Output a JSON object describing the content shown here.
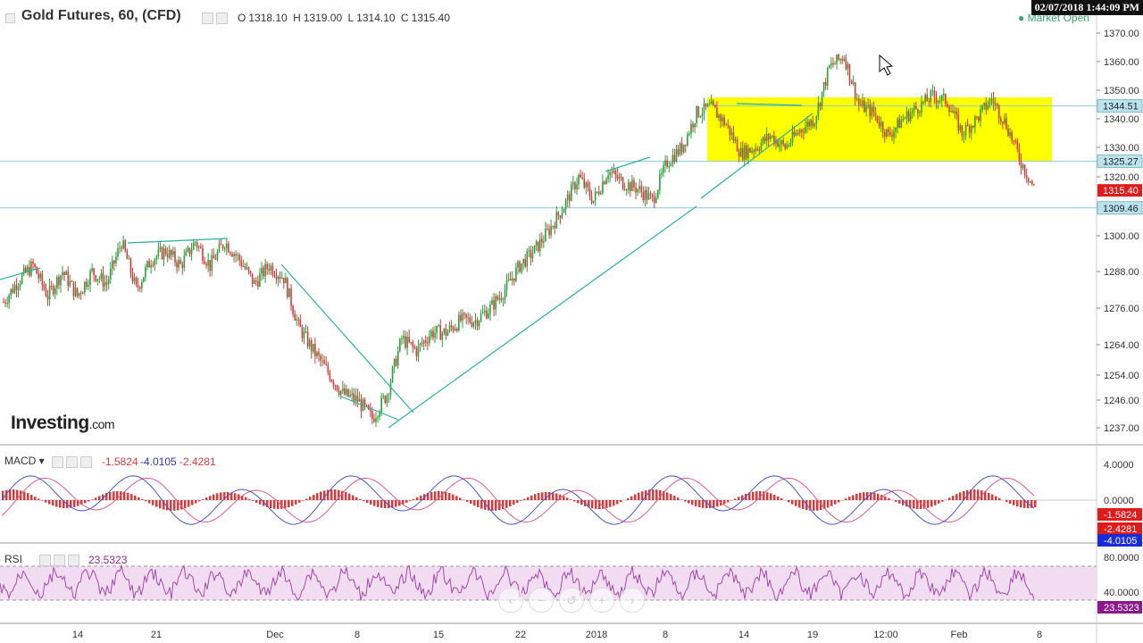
{
  "header": {
    "title": "Gold Futures, 60, (CFD)",
    "ohlc": {
      "o_label": "O",
      "o": "1318.10",
      "h_label": "H",
      "h": "1319.00",
      "l_label": "L",
      "l": "1314.10",
      "c_label": "C",
      "c": "1315.40"
    },
    "market_status": "Market Open",
    "timestamp": "02/07/2018 1:44:09 PM"
  },
  "branding": {
    "logo_main": "Investing",
    "logo_suffix": ".com"
  },
  "colors": {
    "up": "#2e9e3c",
    "down": "#d63b3b",
    "trend": "#2bb0a0",
    "hline": "#8cc9d6",
    "zone": "#ffff00",
    "macd": "#4a54c8",
    "signal": "#e05a8a",
    "rsi": "#a04aa8",
    "rsi_band": "#f1dcf1"
  },
  "chart_data": {
    "type": "candlestick",
    "x_ticks": [
      "14",
      "21",
      "Dec",
      "8",
      "15",
      "22",
      "2018",
      "8",
      "14",
      "19",
      "12:00",
      "Feb",
      "8"
    ],
    "y_ticks": [
      "1370.00",
      "1360.00",
      "1350.00",
      "1340.00",
      "1330.00",
      "1320.00",
      "1300.00",
      "1288.00",
      "1276.00",
      "1264.00",
      "1254.00",
      "1246.00",
      "1237.00"
    ],
    "price_path": [
      [
        0,
        1278
      ],
      [
        2,
        1285
      ],
      [
        4,
        1290
      ],
      [
        6,
        1280
      ],
      [
        8,
        1288
      ],
      [
        10,
        1280
      ],
      [
        12,
        1288
      ],
      [
        14,
        1284
      ],
      [
        16,
        1298
      ],
      [
        18,
        1282
      ],
      [
        20,
        1292
      ],
      [
        22,
        1295
      ],
      [
        24,
        1290
      ],
      [
        26,
        1298
      ],
      [
        28,
        1290
      ],
      [
        30,
        1298
      ],
      [
        32,
        1292
      ],
      [
        34,
        1284
      ],
      [
        36,
        1290
      ],
      [
        38,
        1286
      ],
      [
        40,
        1270
      ],
      [
        42,
        1262
      ],
      [
        44,
        1255
      ],
      [
        46,
        1248
      ],
      [
        48,
        1246
      ],
      [
        50,
        1240
      ],
      [
        52,
        1248
      ],
      [
        54,
        1266
      ],
      [
        56,
        1262
      ],
      [
        58,
        1268
      ],
      [
        60,
        1268
      ],
      [
        62,
        1272
      ],
      [
        64,
        1272
      ],
      [
        66,
        1276
      ],
      [
        68,
        1282
      ],
      [
        70,
        1290
      ],
      [
        72,
        1295
      ],
      [
        74,
        1302
      ],
      [
        76,
        1310
      ],
      [
        78,
        1320
      ],
      [
        80,
        1312
      ],
      [
        82,
        1322
      ],
      [
        84,
        1318
      ],
      [
        86,
        1316
      ],
      [
        88,
        1312
      ],
      [
        90,
        1325
      ],
      [
        92,
        1330
      ],
      [
        94,
        1342
      ],
      [
        96,
        1344
      ],
      [
        98,
        1338
      ],
      [
        100,
        1328
      ],
      [
        102,
        1330
      ],
      [
        104,
        1334
      ],
      [
        106,
        1330
      ],
      [
        108,
        1336
      ],
      [
        110,
        1340
      ],
      [
        112,
        1358
      ],
      [
        114,
        1362
      ],
      [
        116,
        1345
      ],
      [
        118,
        1342
      ],
      [
        120,
        1334
      ],
      [
        122,
        1340
      ],
      [
        124,
        1344
      ],
      [
        126,
        1348
      ],
      [
        128,
        1346
      ],
      [
        130,
        1335
      ],
      [
        132,
        1340
      ],
      [
        134,
        1347
      ],
      [
        136,
        1338
      ],
      [
        138,
        1325
      ],
      [
        140,
        1315
      ]
    ],
    "levels": [
      "1344.51",
      "1325.27",
      "1309.46"
    ],
    "last_price": "1315.40",
    "macd": {
      "label": "MACD",
      "values": [
        "-1.5824",
        "-4.0105",
        "-2.4281"
      ],
      "y_ticks": [
        "4.0000",
        "0.0000"
      ],
      "scale_labels": [
        "-1.5824",
        "-2.4281",
        "-4.0105"
      ]
    },
    "rsi": {
      "label": "RSI",
      "value": "23.5323",
      "y_ticks": [
        "80.0000",
        "40.0000"
      ],
      "scale_label": "23.5323"
    }
  }
}
